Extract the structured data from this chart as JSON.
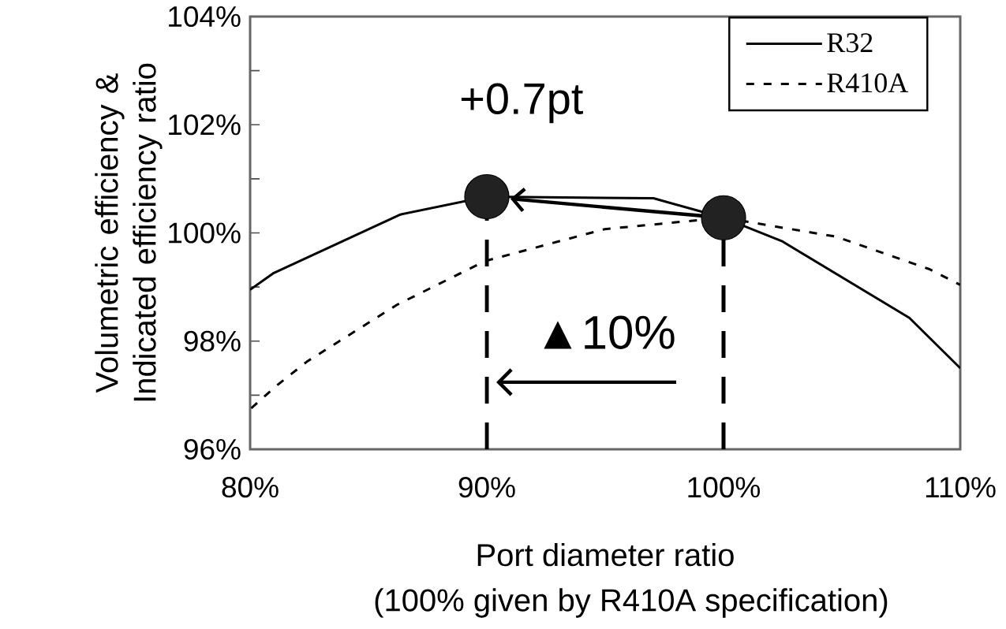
{
  "chart_data": {
    "type": "line",
    "xlabel": "Port diameter ratio",
    "ylabel": "Volumetric efficiency & Indicated efficiency ratio",
    "annotations": [
      "+0.7pt",
      "▲10%",
      "(100% given by R410A specification)"
    ],
    "xlim": [
      80,
      110
    ],
    "xticks": [
      {
        "value": 80,
        "label": "80%"
      },
      {
        "value": 90,
        "label": "90%"
      },
      {
        "value": 100,
        "label": "100%"
      },
      {
        "value": 110,
        "label": "110%"
      }
    ],
    "ylim": [
      96,
      104
    ],
    "yticks": [
      {
        "value": 96,
        "label": "96%"
      },
      {
        "value": 97,
        "label": null
      },
      {
        "value": 98,
        "label": "98%"
      },
      {
        "value": 99,
        "label": null
      },
      {
        "value": 100,
        "label": "100%"
      },
      {
        "value": 101,
        "label": null
      },
      {
        "value": 102,
        "label": "102%"
      },
      {
        "value": 103,
        "label": null
      },
      {
        "value": 104,
        "label": "104%"
      }
    ],
    "legend": "top right",
    "grid": false,
    "series": [
      {
        "name": "R32",
        "color": "#000000",
        "line_style": "solid",
        "x": [
          80,
          81.0,
          86.35,
          90,
          97.04,
          100,
          102.5,
          107.85,
          110
        ],
        "values": [
          98.95,
          99.26,
          100.34,
          100.67,
          100.64,
          100.28,
          99.84,
          98.43,
          97.5
        ]
      },
      {
        "name": "R410A",
        "color": "#000000",
        "line_style": "dashed",
        "x": [
          80.05,
          81.1,
          82.4,
          86.2,
          89.93,
          94.98,
          100,
          104.76,
          108.7,
          110
        ],
        "values": [
          96.76,
          97.17,
          97.62,
          98.67,
          99.48,
          100.07,
          100.28,
          99.93,
          99.33,
          99.04
        ]
      },
      {
        "type": "lollipop",
        "color": "#222222",
        "marker": "circle",
        "line_style": "dashed",
        "x": [
          90,
          100
        ],
        "values": [
          100.67,
          100.28
        ]
      }
    ]
  }
}
